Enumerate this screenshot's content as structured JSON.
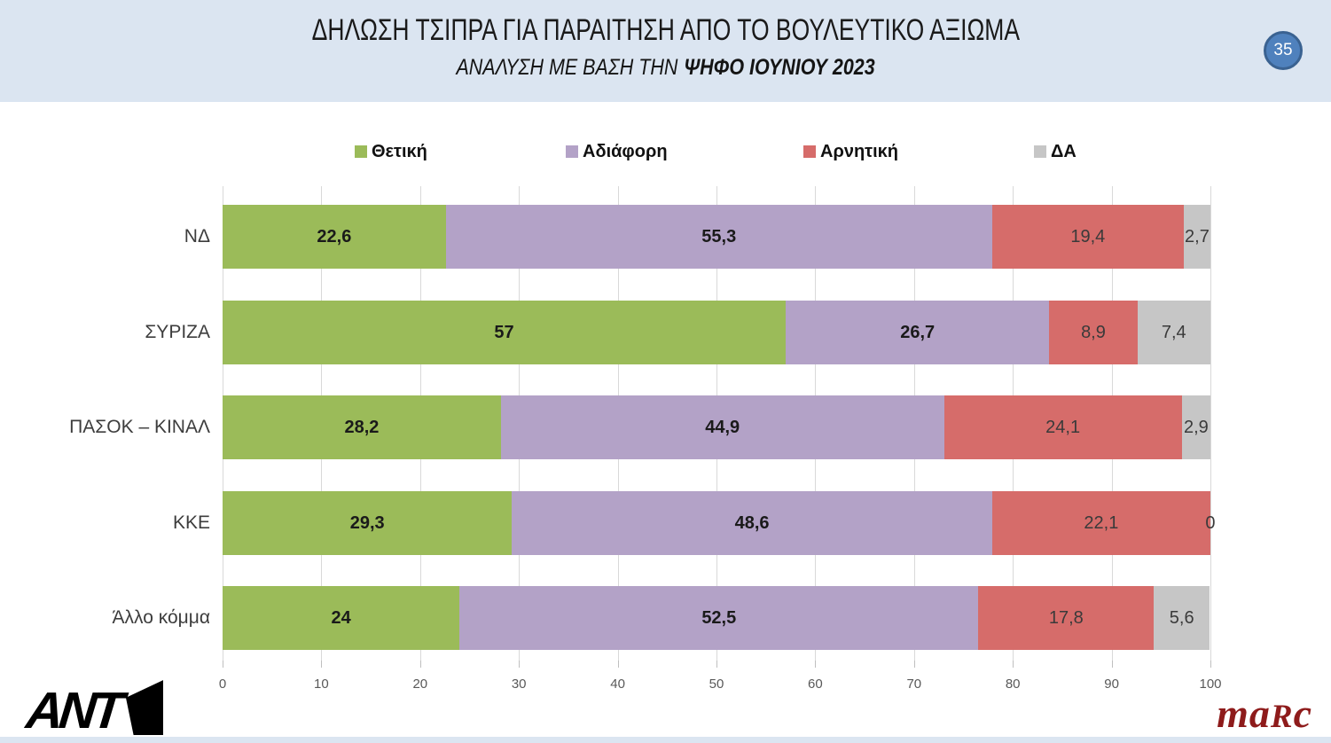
{
  "header": {
    "title": "ΔΗΛΩΣΗ ΤΣΙΠΡΑ ΓΙΑ ΠΑΡΑΙΤΗΣΗ ΑΠΟ ΤΟ ΒΟΥΛΕΥΤΙΚΟ ΑΞΙΩΜΑ",
    "subtitle_prefix": "ΑΝΑΛΥΣΗ ΜΕ ΒΑΣΗ ΤΗΝ",
    "subtitle_emphasis": "ΨΗΦΟ ΙΟΥΝΙΟΥ 2023",
    "slide_number": "35",
    "background_color": "#dbe5f1",
    "badge_color": "#4f81bd"
  },
  "chart_data": {
    "type": "bar",
    "orientation": "horizontal",
    "stacked": true,
    "title": "ΔΗΛΩΣΗ ΤΣΙΠΡΑ ΓΙΑ ΠΑΡΑΙΤΗΣΗ ΑΠΟ ΤΟ ΒΟΥΛΕΥΤΙΚΟ ΑΞΙΩΜΑ",
    "subtitle": "ΑΝΑΛΥΣΗ ΜΕ ΒΑΣΗ ΤΗΝ ΨΗΦΟ ΙΟΥΝΙΟΥ 2023",
    "categories": [
      "ΝΔ",
      "ΣΥΡΙΖΑ",
      "ΠΑΣΟΚ – ΚΙΝΑΛ",
      "ΚΚΕ",
      "Άλλο κόμμα"
    ],
    "series": [
      {
        "name": "Θετική",
        "color": "#9bbb59",
        "label_bold": true,
        "values": [
          22.6,
          57,
          28.2,
          29.3,
          24
        ]
      },
      {
        "name": "Αδιάφορη",
        "color": "#b3a2c7",
        "label_bold": true,
        "values": [
          55.3,
          26.7,
          44.9,
          48.6,
          52.5
        ]
      },
      {
        "name": "Αρνητική",
        "color": "#d66c6a",
        "label_bold": false,
        "values": [
          19.4,
          8.9,
          24.1,
          22.1,
          17.8
        ]
      },
      {
        "name": "ΔΑ",
        "color": "#c6c6c6",
        "label_bold": false,
        "values": [
          2.7,
          7.4,
          2.9,
          0,
          5.6
        ]
      }
    ],
    "xlim": [
      0,
      100
    ],
    "x_ticks": [
      0,
      10,
      20,
      30,
      40,
      50,
      60,
      70,
      80,
      90,
      100
    ],
    "grid": true,
    "legend_position": "top",
    "decimal_separator": ","
  },
  "footer": {
    "ant1_letters": "ANT",
    "ant1_digit": "1",
    "marc_m": "ma",
    "marc_r": "R",
    "marc_c": "c",
    "marc_color": "#8e1b1b"
  }
}
